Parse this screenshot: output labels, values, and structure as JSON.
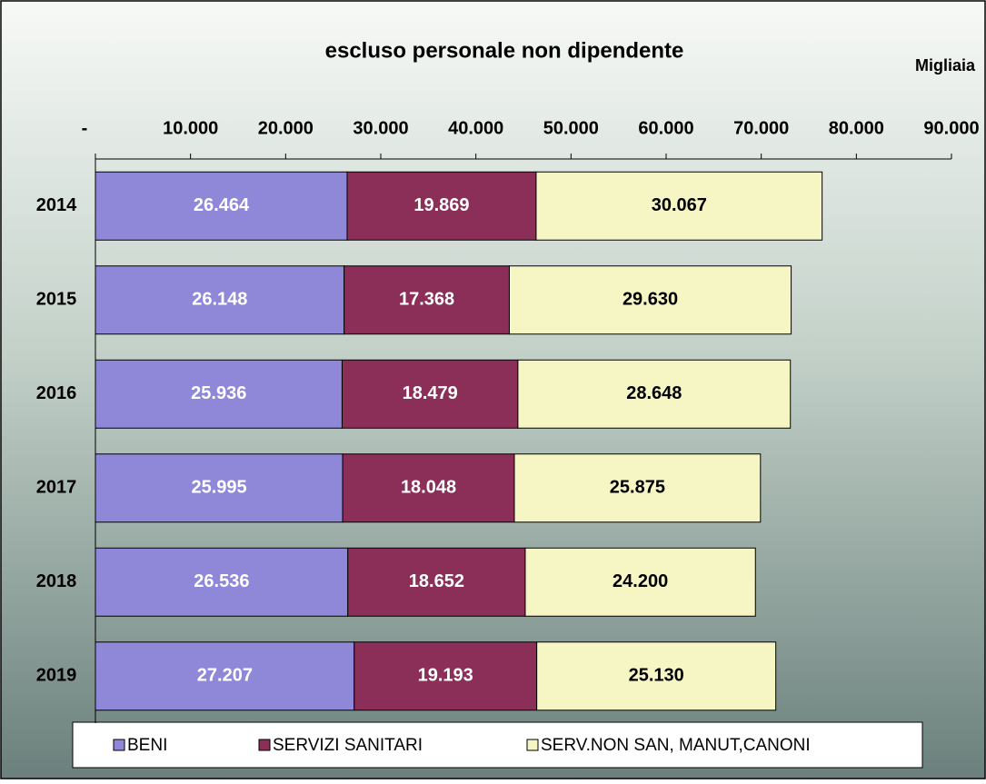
{
  "chart_data": {
    "type": "stacked-bar-horizontal",
    "title": "escluso personale non dipendente",
    "unit_label": "Migliaia",
    "categories": [
      "2014",
      "2015",
      "2016",
      "2017",
      "2018",
      "2019"
    ],
    "series": [
      {
        "name": "BENI",
        "color": "#8f88d8",
        "values": [
          26464,
          26148,
          25936,
          25995,
          26536,
          27207
        ],
        "value_labels": [
          "26.464",
          "26.148",
          "25.936",
          "25.995",
          "26.536",
          "27.207"
        ]
      },
      {
        "name": "SERVIZI SANITARI",
        "color": "#8c2f58",
        "values": [
          19869,
          17368,
          18479,
          18048,
          18652,
          19193
        ],
        "value_labels": [
          "19.869",
          "17.368",
          "18.479",
          "18.048",
          "18.652",
          "19.193"
        ]
      },
      {
        "name": "SERV.NON SAN, MANUT,CANONI",
        "color": "#f6f5c4",
        "values": [
          30067,
          29630,
          28648,
          25875,
          24200,
          25130
        ],
        "value_labels": [
          "30.067",
          "29.630",
          "28.648",
          "25.875",
          "24.200",
          "25.130"
        ]
      }
    ],
    "xlim": [
      0,
      90000
    ],
    "xticks": [
      {
        "value": 0,
        "label": "-"
      },
      {
        "value": 10000,
        "label": "10.000"
      },
      {
        "value": 20000,
        "label": "20.000"
      },
      {
        "value": 30000,
        "label": "30.000"
      },
      {
        "value": 40000,
        "label": "40.000"
      },
      {
        "value": 50000,
        "label": "50.000"
      },
      {
        "value": 60000,
        "label": "60.000"
      },
      {
        "value": 70000,
        "label": "70.000"
      },
      {
        "value": 80000,
        "label": "80.000"
      },
      {
        "value": 90000,
        "label": "90.000"
      }
    ],
    "label_colors": [
      "#ffffff",
      "#ffffff",
      "#000000"
    ],
    "legend": "bottom"
  }
}
